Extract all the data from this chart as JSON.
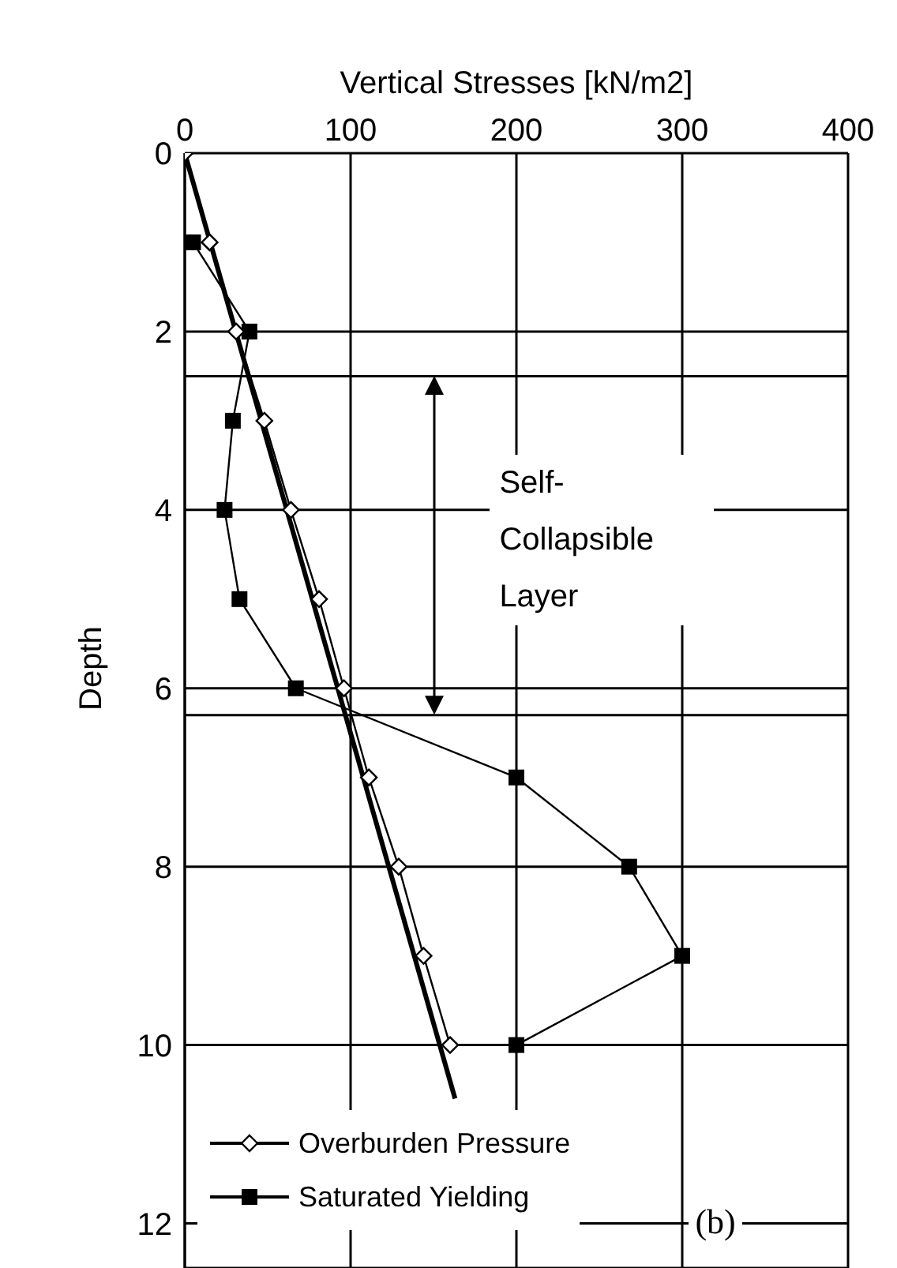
{
  "chart_data": {
    "type": "line",
    "xlabel": "Vertical Stresses [kN/m2]",
    "ylabel": "Depth",
    "xlim": [
      0,
      400
    ],
    "xticks": [
      0,
      100,
      200,
      300,
      400
    ],
    "ylim": [
      12.5,
      0
    ],
    "yticks": [
      0,
      2,
      4,
      6,
      8,
      10,
      12
    ],
    "grid": true,
    "legend": "bottom left",
    "series": [
      {
        "name": "Overburden Pressure",
        "color": "#000000",
        "marker": "diamond",
        "x": [
          0,
          15,
          31,
          48,
          64,
          81,
          96,
          111,
          129,
          144,
          160
        ],
        "values": [
          0,
          1,
          2,
          3,
          4,
          5,
          6,
          7,
          8,
          9,
          10
        ]
      },
      {
        "name": "Saturated Yielding",
        "color": "#000000",
        "marker": "square",
        "x": [
          5,
          39,
          29,
          24,
          33,
          67,
          200,
          268,
          300,
          200
        ],
        "values": [
          1,
          2,
          3,
          4,
          5,
          6,
          7,
          8,
          9,
          10
        ]
      },
      {
        "color": "#000000",
        "marker": "none",
        "x": [
          0,
          163
        ],
        "values": [
          0,
          10.6
        ]
      }
    ],
    "ref_lines": [
      {
        "axis": "y",
        "value": 2.5,
        "color": "#000000"
      },
      {
        "axis": "y",
        "value": 6.3,
        "color": "#000000"
      }
    ],
    "annotations": [
      "Self-Collapsible Layer",
      "(b)"
    ]
  }
}
